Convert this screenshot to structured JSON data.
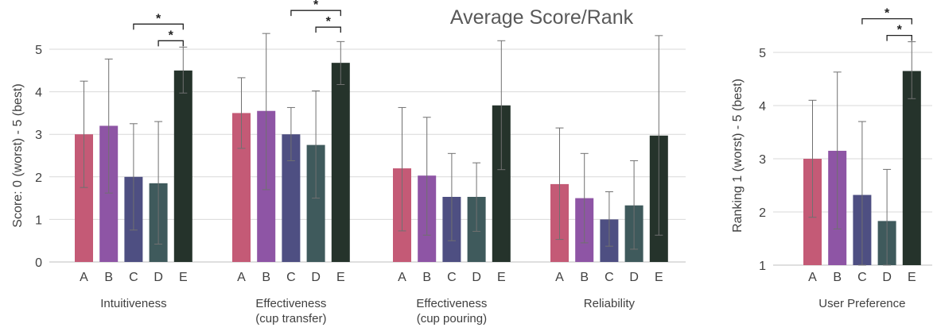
{
  "chart_data": {
    "title": "Average Score/Rank",
    "colors": {
      "A": "#c45a76",
      "B": "#8e55a5",
      "C": "#4e4f82",
      "D": "#3f5a5c",
      "E": "#25332b"
    },
    "charts": [
      {
        "type": "bar",
        "ylabel": "Score: 0 (worst) - 5 (best)",
        "ylim": [
          0,
          5
        ],
        "yticks": [
          "0",
          "1",
          "2",
          "3",
          "4",
          "5"
        ],
        "grid": true,
        "categories": [
          "A",
          "B",
          "C",
          "D",
          "E"
        ],
        "groups": [
          {
            "name": "Intuitiveness",
            "values": [
              3.0,
              3.2,
              2.0,
              1.85,
              4.5
            ],
            "err_low": [
              1.75,
              1.62,
              0.75,
              0.42,
              3.97
            ],
            "err_high": [
              4.25,
              4.77,
              3.25,
              3.3,
              5.05
            ],
            "significance": [
              {
                "from": "D",
                "to": "E",
                "label": "*"
              },
              {
                "from": "C",
                "to": "E",
                "label": "*"
              }
            ]
          },
          {
            "name": "Effectiveness (cup transfer)",
            "values": [
              3.5,
              3.55,
              3.0,
              2.75,
              4.68
            ],
            "err_low": [
              2.67,
              1.7,
              2.38,
              1.5,
              4.17
            ],
            "err_high": [
              4.33,
              5.37,
              3.63,
              4.02,
              5.18
            ],
            "significance": [
              {
                "from": "D",
                "to": "E",
                "label": "*"
              },
              {
                "from": "C",
                "to": "E",
                "label": "*"
              }
            ]
          },
          {
            "name": "Effectiveness (cup pouring)",
            "values": [
              2.2,
              2.03,
              1.53,
              1.53,
              3.68
            ],
            "err_low": [
              0.73,
              0.63,
              0.5,
              0.72,
              2.17
            ],
            "err_high": [
              3.63,
              3.4,
              2.55,
              2.33,
              5.2
            ],
            "significance": []
          },
          {
            "name": "Reliability",
            "values": [
              1.83,
              1.5,
              1.0,
              1.33,
              2.97
            ],
            "err_low": [
              0.53,
              0.45,
              0.37,
              0.3,
              0.63
            ],
            "err_high": [
              3.15,
              2.55,
              1.65,
              2.38,
              5.32
            ],
            "significance": []
          }
        ]
      },
      {
        "type": "bar",
        "ylabel": "Ranking 1 (worst) - 5 (best)",
        "ylim": [
          1,
          5
        ],
        "yticks": [
          "1",
          "2",
          "3",
          "4",
          "5"
        ],
        "grid": true,
        "categories": [
          "A",
          "B",
          "C",
          "D",
          "E"
        ],
        "groups": [
          {
            "name": "User Preference",
            "values": [
              3.0,
              3.15,
              2.32,
              1.83,
              4.65
            ],
            "err_low": [
              1.9,
              1.68,
              1.0,
              1.0,
              4.13
            ],
            "err_high": [
              4.1,
              4.63,
              3.7,
              2.8,
              5.2
            ],
            "significance": [
              {
                "from": "D",
                "to": "E",
                "label": "*"
              },
              {
                "from": "C",
                "to": "E",
                "label": "*"
              }
            ]
          }
        ]
      }
    ]
  }
}
